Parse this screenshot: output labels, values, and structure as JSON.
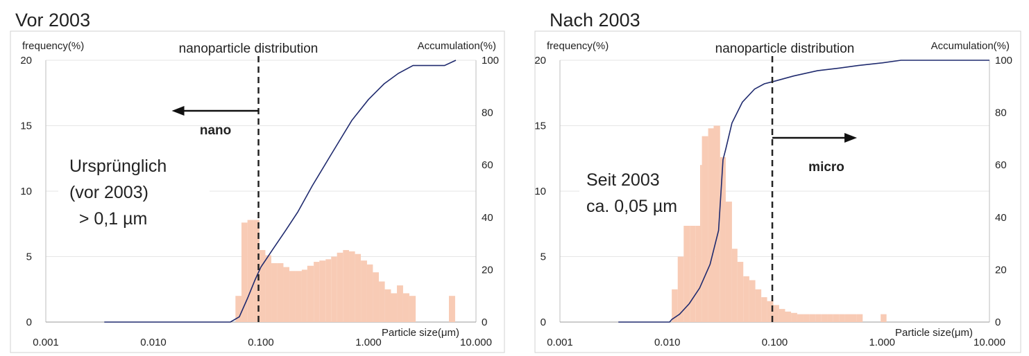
{
  "charts": [
    {
      "heading": "Vor 2003",
      "title": "nanoparticle distribution",
      "ylabel_left": "frequency(%)",
      "ylabel_right": "Accumulation(%)",
      "xlabel": "Particle size(μm)",
      "annotation_lines": [
        "Ursprünglich",
        "(vor 2003)",
        "  > 0,1 µm"
      ],
      "arrow_label": "nano",
      "arrow_direction": "left",
      "cutoff_x": 0.095
    },
    {
      "heading": "Nach 2003",
      "title": "nanoparticle distribution",
      "ylabel_left": "frequency(%)",
      "ylabel_right": "Accumulation(%)",
      "xlabel": "Particle size(μm)",
      "annotation_lines": [
        "Seit 2003",
        "ca. 0,05 µm"
      ],
      "arrow_label": "micro",
      "arrow_direction": "right",
      "cutoff_x": 0.095
    }
  ],
  "chart_data": [
    {
      "type": "bar",
      "x_scale": "log",
      "xlim": [
        0.001,
        10
      ],
      "x_ticks": [
        "0.001",
        "0.010",
        "0.100",
        "1.000",
        "10.000"
      ],
      "y_left_lim": [
        0,
        20
      ],
      "y_left_ticks": [
        "0",
        "5",
        "10",
        "15",
        "20"
      ],
      "y_right_lim": [
        0,
        100
      ],
      "y_right_ticks": [
        "0",
        "20",
        "40",
        "60",
        "80",
        "100"
      ],
      "grid": true,
      "colors": {
        "bars": "#f8cbb5",
        "line": "#1f2a6e",
        "cutoff": "#222222",
        "grid": "#e6e6e6"
      },
      "bars": [
        {
          "x0": 0.058,
          "x1": 0.066,
          "v": 2.0
        },
        {
          "x0": 0.066,
          "x1": 0.075,
          "v": 7.6
        },
        {
          "x0": 0.075,
          "x1": 0.085,
          "v": 7.8
        },
        {
          "x0": 0.085,
          "x1": 0.097,
          "v": 7.8
        },
        {
          "x0": 0.097,
          "x1": 0.11,
          "v": 5.5
        },
        {
          "x0": 0.11,
          "x1": 0.125,
          "v": 5.1
        },
        {
          "x0": 0.125,
          "x1": 0.142,
          "v": 4.5
        },
        {
          "x0": 0.142,
          "x1": 0.162,
          "v": 4.5
        },
        {
          "x0": 0.162,
          "x1": 0.184,
          "v": 4.2
        },
        {
          "x0": 0.184,
          "x1": 0.21,
          "v": 3.9
        },
        {
          "x0": 0.21,
          "x1": 0.24,
          "v": 3.9
        },
        {
          "x0": 0.24,
          "x1": 0.27,
          "v": 4.0
        },
        {
          "x0": 0.27,
          "x1": 0.31,
          "v": 4.3
        },
        {
          "x0": 0.31,
          "x1": 0.35,
          "v": 4.6
        },
        {
          "x0": 0.35,
          "x1": 0.4,
          "v": 4.7
        },
        {
          "x0": 0.4,
          "x1": 0.45,
          "v": 4.8
        },
        {
          "x0": 0.45,
          "x1": 0.51,
          "v": 5.0
        },
        {
          "x0": 0.51,
          "x1": 0.58,
          "v": 5.3
        },
        {
          "x0": 0.58,
          "x1": 0.66,
          "v": 5.5
        },
        {
          "x0": 0.66,
          "x1": 0.75,
          "v": 5.4
        },
        {
          "x0": 0.75,
          "x1": 0.85,
          "v": 5.2
        },
        {
          "x0": 0.85,
          "x1": 0.97,
          "v": 4.7
        },
        {
          "x0": 0.97,
          "x1": 1.1,
          "v": 4.4
        },
        {
          "x0": 1.1,
          "x1": 1.25,
          "v": 3.8
        },
        {
          "x0": 1.25,
          "x1": 1.42,
          "v": 3.1
        },
        {
          "x0": 1.42,
          "x1": 1.62,
          "v": 2.5
        },
        {
          "x0": 1.62,
          "x1": 1.84,
          "v": 2.2
        },
        {
          "x0": 1.84,
          "x1": 2.1,
          "v": 2.8
        },
        {
          "x0": 2.1,
          "x1": 2.4,
          "v": 2.2
        },
        {
          "x0": 2.4,
          "x1": 2.75,
          "v": 2.0
        },
        {
          "x0": 5.6,
          "x1": 6.4,
          "v": 2.0
        }
      ],
      "accumulation": {
        "x": [
          0.0035,
          0.052,
          0.063,
          0.075,
          0.088,
          0.1,
          0.13,
          0.17,
          0.22,
          0.3,
          0.45,
          0.7,
          1.0,
          1.4,
          1.9,
          2.6,
          3.2,
          4.1,
          5.1,
          6.5
        ],
        "y": [
          0,
          0,
          2,
          9,
          16,
          21,
          28,
          35,
          42,
          52,
          64,
          77,
          85,
          91,
          95,
          98,
          98,
          98,
          98,
          100
        ]
      }
    },
    {
      "type": "bar",
      "x_scale": "log",
      "xlim": [
        0.001,
        10
      ],
      "x_ticks": [
        "0.001",
        "0.010",
        "0.100",
        "1.000",
        "10.000"
      ],
      "y_left_lim": [
        0,
        20
      ],
      "y_left_ticks": [
        "0",
        "5",
        "10",
        "15",
        "20"
      ],
      "y_right_lim": [
        0,
        100
      ],
      "y_right_ticks": [
        "0",
        "20",
        "40",
        "60",
        "80",
        "100"
      ],
      "grid": true,
      "colors": {
        "bars": "#f8cbb5",
        "line": "#1f2a6e",
        "cutoff": "#222222",
        "grid": "#e6e6e6"
      },
      "bars": [
        {
          "x0": 0.011,
          "x1": 0.0125,
          "v": 2.5
        },
        {
          "x0": 0.0125,
          "x1": 0.0142,
          "v": 5.0
        },
        {
          "x0": 0.0142,
          "x1": 0.0162,
          "v": 8.0
        },
        {
          "x0": 0.0162,
          "x1": 0.0184,
          "v": 11.5
        },
        {
          "x0": 0.0184,
          "x1": 0.021,
          "v": 12.0
        },
        {
          "x0": 0.021,
          "x1": 0.024,
          "v": 14.2
        },
        {
          "x0": 0.024,
          "x1": 0.027,
          "v": 14.8
        },
        {
          "x0": 0.027,
          "x1": 0.031,
          "v": 15.0
        },
        {
          "x0": 0.031,
          "x1": 0.035,
          "v": 12.6
        },
        {
          "x0": 0.035,
          "x1": 0.04,
          "v": 9.2
        },
        {
          "x0": 0.04,
          "x1": 0.045,
          "v": 5.6
        },
        {
          "x0": 0.045,
          "x1": 0.051,
          "v": 4.6
        },
        {
          "x0": 0.051,
          "x1": 0.058,
          "v": 3.5
        },
        {
          "x0": 0.058,
          "x1": 0.066,
          "v": 3.2
        },
        {
          "x0": 0.066,
          "x1": 0.075,
          "v": 2.5
        },
        {
          "x0": 0.075,
          "x1": 0.085,
          "v": 1.9
        },
        {
          "x0": 0.085,
          "x1": 0.097,
          "v": 1.6
        },
        {
          "x0": 0.097,
          "x1": 0.11,
          "v": 1.3
        },
        {
          "x0": 0.11,
          "x1": 0.125,
          "v": 1.0
        },
        {
          "x0": 0.125,
          "x1": 0.142,
          "v": 0.8
        },
        {
          "x0": 0.142,
          "x1": 0.162,
          "v": 0.7
        },
        {
          "x0": 0.162,
          "x1": 0.184,
          "v": 0.6
        },
        {
          "x0": 0.184,
          "x1": 0.21,
          "v": 0.6
        },
        {
          "x0": 0.21,
          "x1": 0.24,
          "v": 0.6
        },
        {
          "x0": 0.24,
          "x1": 0.27,
          "v": 0.6
        },
        {
          "x0": 0.27,
          "x1": 0.31,
          "v": 0.6
        },
        {
          "x0": 0.31,
          "x1": 0.35,
          "v": 0.6
        },
        {
          "x0": 0.35,
          "x1": 0.4,
          "v": 0.6
        },
        {
          "x0": 0.4,
          "x1": 0.45,
          "v": 0.6
        },
        {
          "x0": 0.45,
          "x1": 0.51,
          "v": 0.6
        },
        {
          "x0": 0.51,
          "x1": 0.58,
          "v": 0.6
        },
        {
          "x0": 0.58,
          "x1": 0.66,
          "v": 0.6
        },
        {
          "x0": 0.97,
          "x1": 1.1,
          "v": 0.6
        }
      ],
      "accumulation": {
        "x": [
          0.0035,
          0.0105,
          0.011,
          0.013,
          0.016,
          0.02,
          0.025,
          0.03,
          0.033,
          0.035,
          0.04,
          0.05,
          0.065,
          0.08,
          0.1,
          0.15,
          0.25,
          0.4,
          0.6,
          1.0,
          1.5,
          10
        ],
        "y": [
          0,
          0,
          1,
          3,
          7,
          13,
          22,
          35,
          62,
          66,
          76,
          84,
          89,
          91,
          92,
          94,
          96,
          97,
          98,
          99,
          100,
          100
        ]
      }
    }
  ]
}
